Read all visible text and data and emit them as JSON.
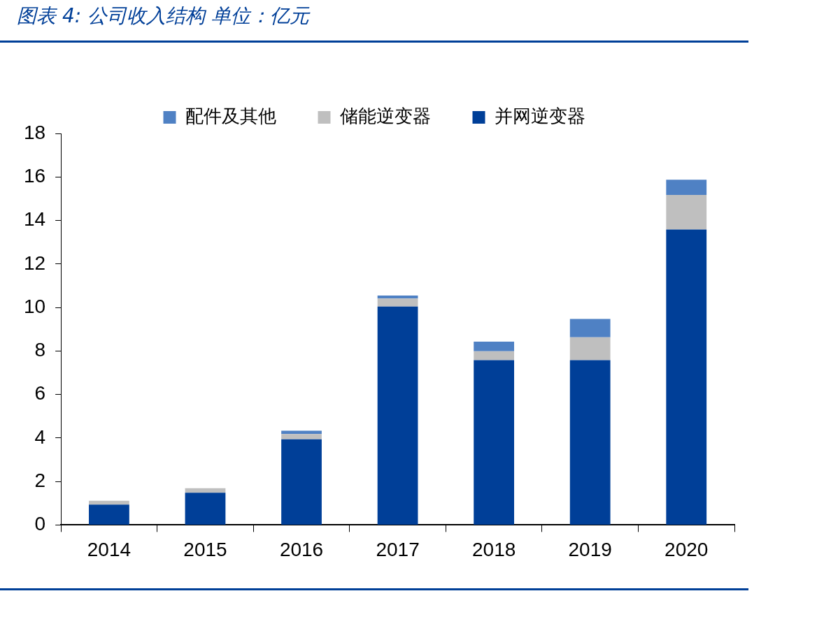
{
  "chart_data": {
    "type": "bar",
    "title": "图表 4:  公司收入结构 单位：亿元",
    "stacked": true,
    "categories": [
      "2014",
      "2015",
      "2016",
      "2017",
      "2018",
      "2019",
      "2020"
    ],
    "series": [
      {
        "name": "并网逆变器",
        "color": "#003f98",
        "values": [
          0.94,
          1.48,
          3.94,
          10.04,
          7.58,
          7.58,
          13.58
        ]
      },
      {
        "name": "储能逆变器",
        "color": "#bfbfbf",
        "values": [
          0.17,
          0.21,
          0.24,
          0.37,
          0.41,
          1.05,
          1.59
        ]
      },
      {
        "name": "配件及其他",
        "color": "#4f81c4",
        "values": [
          null,
          null,
          0.15,
          0.14,
          0.44,
          0.84,
          0.7
        ]
      }
    ],
    "ylim": [
      0,
      18
    ],
    "yticks": [
      0,
      2,
      4,
      6,
      8,
      10,
      12,
      14,
      16,
      18
    ],
    "grid": false,
    "legend": "top"
  }
}
